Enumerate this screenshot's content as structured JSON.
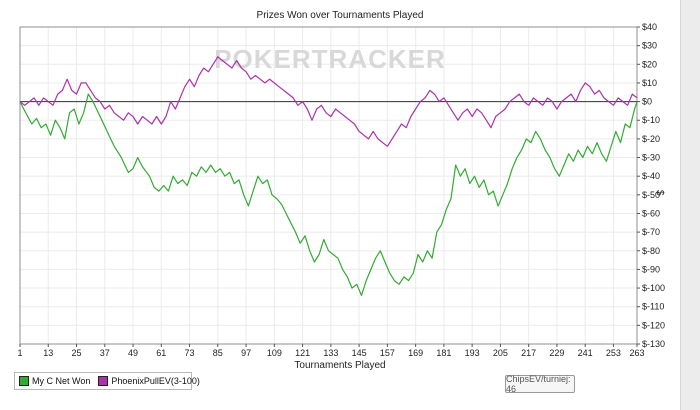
{
  "chart_data": {
    "type": "line",
    "title": "Prizes Won over Tournaments Played",
    "xlabel": "Tournaments Played",
    "ylabel": "$",
    "x_ticks": [
      1,
      13,
      25,
      37,
      49,
      61,
      73,
      85,
      97,
      109,
      121,
      133,
      145,
      157,
      169,
      181,
      193,
      205,
      217,
      229,
      241,
      253,
      263
    ],
    "xlim": [
      1,
      263
    ],
    "y_ticks": [
      40,
      30,
      20,
      10,
      0,
      -10,
      -20,
      -30,
      -40,
      -50,
      -60,
      -70,
      -80,
      -90,
      -100,
      -110,
      -120,
      -130
    ],
    "y_tick_labels": [
      "$40",
      "$30",
      "$20",
      "$10",
      "$0",
      "$-10",
      "$-20",
      "$-30",
      "$-40",
      "$-50",
      "$-60",
      "$-70",
      "$-80",
      "$-90",
      "$-100",
      "$-110",
      "$-120",
      "$-130"
    ],
    "ylim": [
      -130,
      40
    ],
    "grid": true,
    "legend_position": "bottom-left",
    "series": [
      {
        "name": "My C Net Won",
        "color": "#33aa33",
        "points": [
          [
            1,
            0
          ],
          [
            3,
            -5
          ],
          [
            6,
            -12
          ],
          [
            8,
            -9
          ],
          [
            10,
            -14
          ],
          [
            12,
            -12
          ],
          [
            14,
            -18
          ],
          [
            16,
            -10
          ],
          [
            18,
            -14
          ],
          [
            20,
            -20
          ],
          [
            22,
            -6
          ],
          [
            24,
            -4
          ],
          [
            26,
            -12
          ],
          [
            28,
            -6
          ],
          [
            30,
            4
          ],
          [
            32,
            0
          ],
          [
            35,
            -8
          ],
          [
            38,
            -16
          ],
          [
            41,
            -24
          ],
          [
            44,
            -30
          ],
          [
            47,
            -38
          ],
          [
            49,
            -36
          ],
          [
            51,
            -30
          ],
          [
            53,
            -35
          ],
          [
            56,
            -40
          ],
          [
            58,
            -46
          ],
          [
            60,
            -48
          ],
          [
            62,
            -45
          ],
          [
            64,
            -48
          ],
          [
            66,
            -40
          ],
          [
            68,
            -44
          ],
          [
            70,
            -42
          ],
          [
            72,
            -45
          ],
          [
            74,
            -38
          ],
          [
            76,
            -40
          ],
          [
            78,
            -35
          ],
          [
            80,
            -38
          ],
          [
            82,
            -34
          ],
          [
            84,
            -38
          ],
          [
            86,
            -36
          ],
          [
            88,
            -40
          ],
          [
            90,
            -38
          ],
          [
            92,
            -44
          ],
          [
            94,
            -42
          ],
          [
            96,
            -50
          ],
          [
            98,
            -56
          ],
          [
            100,
            -48
          ],
          [
            102,
            -40
          ],
          [
            104,
            -44
          ],
          [
            106,
            -42
          ],
          [
            108,
            -50
          ],
          [
            110,
            -52
          ],
          [
            112,
            -55
          ],
          [
            114,
            -60
          ],
          [
            116,
            -65
          ],
          [
            118,
            -70
          ],
          [
            120,
            -76
          ],
          [
            122,
            -72
          ],
          [
            124,
            -80
          ],
          [
            126,
            -86
          ],
          [
            128,
            -82
          ],
          [
            130,
            -74
          ],
          [
            132,
            -80
          ],
          [
            134,
            -82
          ],
          [
            136,
            -84
          ],
          [
            138,
            -90
          ],
          [
            140,
            -94
          ],
          [
            142,
            -100
          ],
          [
            144,
            -98
          ],
          [
            146,
            -104
          ],
          [
            148,
            -96
          ],
          [
            150,
            -90
          ],
          [
            152,
            -84
          ],
          [
            154,
            -80
          ],
          [
            156,
            -86
          ],
          [
            158,
            -92
          ],
          [
            160,
            -96
          ],
          [
            162,
            -98
          ],
          [
            164,
            -94
          ],
          [
            166,
            -96
          ],
          [
            168,
            -92
          ],
          [
            170,
            -82
          ],
          [
            172,
            -86
          ],
          [
            174,
            -80
          ],
          [
            176,
            -84
          ],
          [
            178,
            -70
          ],
          [
            180,
            -66
          ],
          [
            182,
            -58
          ],
          [
            184,
            -52
          ],
          [
            186,
            -34
          ],
          [
            188,
            -40
          ],
          [
            190,
            -36
          ],
          [
            192,
            -44
          ],
          [
            194,
            -40
          ],
          [
            196,
            -46
          ],
          [
            198,
            -42
          ],
          [
            200,
            -50
          ],
          [
            202,
            -48
          ],
          [
            204,
            -56
          ],
          [
            206,
            -50
          ],
          [
            208,
            -44
          ],
          [
            210,
            -36
          ],
          [
            212,
            -30
          ],
          [
            214,
            -26
          ],
          [
            216,
            -20
          ],
          [
            218,
            -22
          ],
          [
            220,
            -16
          ],
          [
            222,
            -20
          ],
          [
            224,
            -26
          ],
          [
            226,
            -30
          ],
          [
            228,
            -36
          ],
          [
            230,
            -40
          ],
          [
            232,
            -34
          ],
          [
            234,
            -28
          ],
          [
            236,
            -32
          ],
          [
            238,
            -26
          ],
          [
            240,
            -30
          ],
          [
            242,
            -24
          ],
          [
            244,
            -28
          ],
          [
            246,
            -22
          ],
          [
            248,
            -28
          ],
          [
            250,
            -32
          ],
          [
            252,
            -24
          ],
          [
            254,
            -16
          ],
          [
            256,
            -22
          ],
          [
            258,
            -12
          ],
          [
            260,
            -14
          ],
          [
            262,
            -4
          ],
          [
            263,
            0
          ]
        ]
      },
      {
        "name": "PhoenixPullEV(3-100)",
        "color": "#aa33aa",
        "points": [
          [
            1,
            0
          ],
          [
            3,
            -2
          ],
          [
            5,
            0
          ],
          [
            7,
            2
          ],
          [
            9,
            -2
          ],
          [
            11,
            2
          ],
          [
            13,
            0
          ],
          [
            15,
            -2
          ],
          [
            17,
            4
          ],
          [
            19,
            6
          ],
          [
            21,
            12
          ],
          [
            23,
            6
          ],
          [
            25,
            4
          ],
          [
            27,
            10
          ],
          [
            29,
            10
          ],
          [
            31,
            6
          ],
          [
            33,
            2
          ],
          [
            35,
            0
          ],
          [
            37,
            -4
          ],
          [
            39,
            -2
          ],
          [
            41,
            -6
          ],
          [
            43,
            -8
          ],
          [
            45,
            -10
          ],
          [
            47,
            -6
          ],
          [
            49,
            -8
          ],
          [
            51,
            -12
          ],
          [
            53,
            -8
          ],
          [
            55,
            -10
          ],
          [
            57,
            -12
          ],
          [
            59,
            -8
          ],
          [
            61,
            -12
          ],
          [
            63,
            -8
          ],
          [
            65,
            0
          ],
          [
            67,
            -4
          ],
          [
            69,
            2
          ],
          [
            71,
            8
          ],
          [
            73,
            12
          ],
          [
            75,
            8
          ],
          [
            77,
            14
          ],
          [
            79,
            18
          ],
          [
            81,
            16
          ],
          [
            83,
            20
          ],
          [
            85,
            24
          ],
          [
            87,
            22
          ],
          [
            89,
            20
          ],
          [
            91,
            18
          ],
          [
            93,
            22
          ],
          [
            95,
            18
          ],
          [
            97,
            16
          ],
          [
            99,
            12
          ],
          [
            101,
            14
          ],
          [
            103,
            12
          ],
          [
            105,
            10
          ],
          [
            107,
            12
          ],
          [
            109,
            10
          ],
          [
            111,
            8
          ],
          [
            113,
            6
          ],
          [
            115,
            4
          ],
          [
            117,
            2
          ],
          [
            119,
            -2
          ],
          [
            121,
            0
          ],
          [
            123,
            -4
          ],
          [
            125,
            -10
          ],
          [
            127,
            -4
          ],
          [
            129,
            -2
          ],
          [
            131,
            -6
          ],
          [
            133,
            -8
          ],
          [
            135,
            -4
          ],
          [
            137,
            -6
          ],
          [
            139,
            -8
          ],
          [
            141,
            -10
          ],
          [
            143,
            -12
          ],
          [
            145,
            -16
          ],
          [
            147,
            -18
          ],
          [
            149,
            -20
          ],
          [
            151,
            -16
          ],
          [
            153,
            -20
          ],
          [
            155,
            -22
          ],
          [
            157,
            -24
          ],
          [
            159,
            -20
          ],
          [
            161,
            -16
          ],
          [
            163,
            -12
          ],
          [
            165,
            -14
          ],
          [
            167,
            -8
          ],
          [
            169,
            -4
          ],
          [
            171,
            0
          ],
          [
            173,
            2
          ],
          [
            175,
            6
          ],
          [
            177,
            4
          ],
          [
            179,
            0
          ],
          [
            181,
            2
          ],
          [
            183,
            -2
          ],
          [
            185,
            -6
          ],
          [
            187,
            -10
          ],
          [
            189,
            -6
          ],
          [
            191,
            -4
          ],
          [
            193,
            -8
          ],
          [
            195,
            -4
          ],
          [
            197,
            -6
          ],
          [
            199,
            -10
          ],
          [
            201,
            -14
          ],
          [
            203,
            -8
          ],
          [
            205,
            -6
          ],
          [
            207,
            -4
          ],
          [
            209,
            0
          ],
          [
            211,
            2
          ],
          [
            213,
            4
          ],
          [
            215,
            0
          ],
          [
            217,
            -2
          ],
          [
            219,
            2
          ],
          [
            221,
            0
          ],
          [
            223,
            -2
          ],
          [
            225,
            2
          ],
          [
            227,
            0
          ],
          [
            229,
            -4
          ],
          [
            231,
            0
          ],
          [
            233,
            2
          ],
          [
            235,
            4
          ],
          [
            237,
            0
          ],
          [
            239,
            6
          ],
          [
            241,
            10
          ],
          [
            243,
            8
          ],
          [
            245,
            4
          ],
          [
            247,
            6
          ],
          [
            249,
            2
          ],
          [
            251,
            0
          ],
          [
            253,
            -2
          ],
          [
            255,
            2
          ],
          [
            257,
            0
          ],
          [
            259,
            -2
          ],
          [
            261,
            4
          ],
          [
            263,
            2
          ]
        ]
      }
    ],
    "watermark": "POKERTRACKER"
  },
  "legend": {
    "items": [
      {
        "label": "My C Net Won",
        "color": "#33aa33"
      },
      {
        "label": "PhoenixPullEV(3-100)",
        "color": "#aa33aa"
      }
    ]
  },
  "badge": "ChipsEV/turniej: 46"
}
